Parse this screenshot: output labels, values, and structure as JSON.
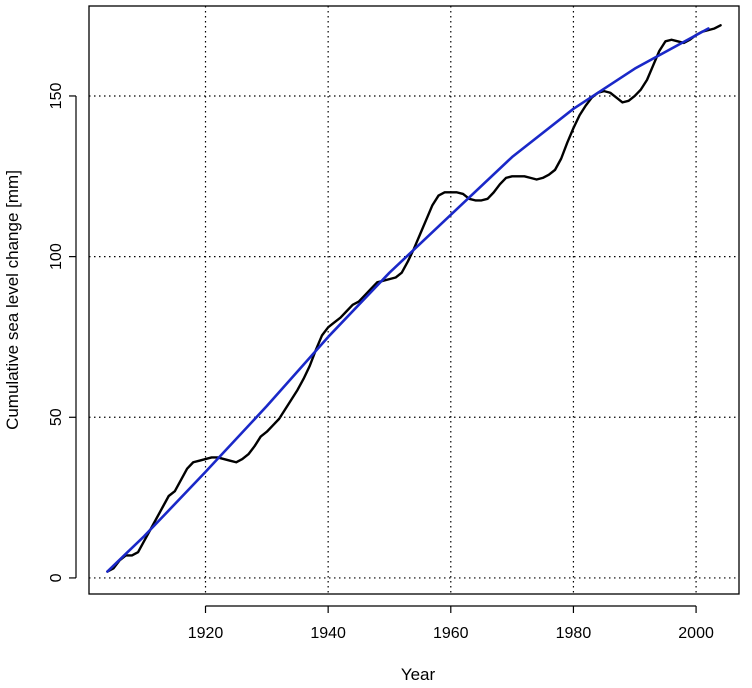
{
  "chart_data": {
    "type": "line",
    "title": "",
    "xlabel": "Year",
    "ylabel": "Cumulative sea level change [mm]",
    "xlim": [
      1901,
      2007
    ],
    "ylim": [
      -5,
      178
    ],
    "x_ticks": [
      1920,
      1940,
      1960,
      1980,
      2000
    ],
    "y_ticks": [
      0,
      50,
      100,
      150
    ],
    "grid": true,
    "legend": "none",
    "series": [
      {
        "color": "#000000",
        "x": [
          1904,
          1905,
          1906,
          1907,
          1908,
          1909,
          1910,
          1911,
          1912,
          1913,
          1914,
          1915,
          1916,
          1917,
          1918,
          1919,
          1920,
          1921,
          1922,
          1923,
          1924,
          1925,
          1926,
          1927,
          1928,
          1929,
          1930,
          1931,
          1932,
          1933,
          1934,
          1935,
          1936,
          1937,
          1938,
          1939,
          1940,
          1941,
          1942,
          1943,
          1944,
          1945,
          1946,
          1947,
          1948,
          1949,
          1950,
          1951,
          1952,
          1953,
          1954,
          1955,
          1956,
          1957,
          1958,
          1959,
          1960,
          1961,
          1962,
          1963,
          1964,
          1965,
          1966,
          1967,
          1968,
          1969,
          1970,
          1971,
          1972,
          1973,
          1974,
          1975,
          1976,
          1977,
          1978,
          1979,
          1980,
          1981,
          1982,
          1983,
          1984,
          1985,
          1986,
          1987,
          1988,
          1989,
          1990,
          1991,
          1992,
          1993,
          1994,
          1995,
          1996,
          1997,
          1998,
          1999,
          2000,
          2001,
          2002,
          2003,
          2004
        ],
        "y": [
          2,
          3,
          5.5,
          7,
          7,
          8,
          11.5,
          15,
          18.5,
          22,
          25.5,
          27,
          30.5,
          34,
          36,
          36.5,
          37,
          37.5,
          37.5,
          37,
          36.5,
          36,
          37,
          38.5,
          41,
          44,
          45.5,
          47.5,
          49.5,
          52.5,
          55.5,
          58.5,
          62,
          66,
          71,
          75.5,
          78,
          79.5,
          81,
          83,
          85,
          86,
          88,
          90,
          92,
          92.5,
          93,
          93.5,
          95,
          98.5,
          102.5,
          107,
          111.5,
          116,
          119,
          120,
          120,
          120,
          119.5,
          118,
          117.5,
          117.5,
          118,
          120,
          122.5,
          124.5,
          125,
          125,
          125,
          124.5,
          124,
          124.5,
          125.5,
          127,
          130.5,
          135.5,
          140,
          144,
          147,
          149.5,
          151,
          151.5,
          151,
          149.5,
          148,
          148.5,
          150,
          152,
          155,
          159.5,
          164,
          167,
          167.5,
          167,
          166.5,
          167.5,
          169,
          170,
          170.5,
          171,
          172
        ]
      },
      {
        "color": "#1a28c8",
        "x": [
          1904,
          1910,
          1920,
          1930,
          1940,
          1950,
          1960,
          1970,
          1980,
          1990,
          2002
        ],
        "y": [
          2,
          13,
          33,
          53.5,
          75,
          95,
          113,
          131,
          146,
          158.5,
          171
        ]
      }
    ]
  }
}
